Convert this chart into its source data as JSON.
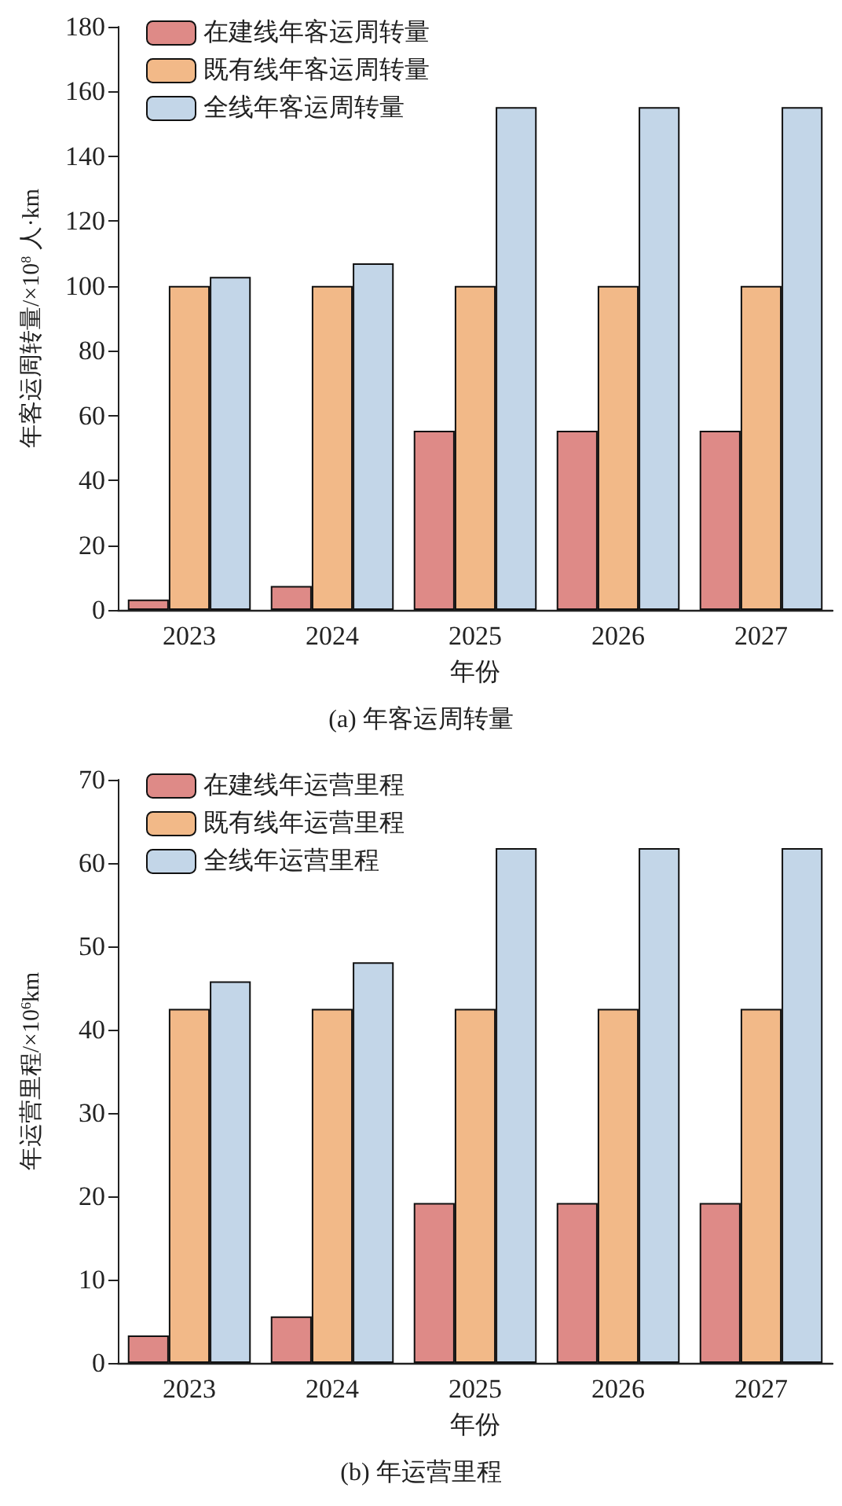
{
  "chart_data": [
    {
      "type": "bar",
      "title": "(a) 年客运周转量",
      "xlabel": "年份",
      "ylabel": "年客运周转量/×10$^{8}$ 人·km",
      "categories": [
        "2023",
        "2024",
        "2025",
        "2026",
        "2027"
      ],
      "series": [
        {
          "name": "在建线年客运周转量",
          "color": "#de8a87",
          "values": [
            3.2,
            7.4,
            55.3,
            55.3,
            55.3
          ]
        },
        {
          "name": "既有线年客运周转量",
          "color": "#f2b988",
          "values": [
            100,
            100,
            100,
            100,
            100
          ]
        },
        {
          "name": "全线年客运周转量",
          "color": "#c3d6e8",
          "values": [
            102.8,
            107,
            155.2,
            155.2,
            155.2
          ]
        }
      ],
      "ylim": [
        0,
        180
      ],
      "yticks": [
        0,
        20,
        40,
        60,
        80,
        100,
        120,
        140,
        160,
        180
      ],
      "grid": false,
      "legend": "top left"
    },
    {
      "type": "bar",
      "title": "(b) 年运营里程",
      "xlabel": "年份",
      "ylabel": "年运营里程/×10$^{6}$km",
      "categories": [
        "2023",
        "2024",
        "2025",
        "2026",
        "2027"
      ],
      "series": [
        {
          "name": "在建线年运营里程",
          "color": "#de8a87",
          "values": [
            3.3,
            5.6,
            19.2,
            19.2,
            19.2
          ]
        },
        {
          "name": "既有线年运营里程",
          "color": "#f2b988",
          "values": [
            42.5,
            42.5,
            42.5,
            42.5,
            42.5
          ]
        },
        {
          "name": "全线年运营里程",
          "color": "#c3d6e8",
          "values": [
            45.8,
            48.1,
            61.8,
            61.8,
            61.8
          ]
        }
      ],
      "ylim": [
        0,
        70
      ],
      "yticks": [
        0,
        10,
        20,
        30,
        40,
        50,
        60,
        70
      ],
      "grid": false,
      "legend": "top left"
    }
  ]
}
